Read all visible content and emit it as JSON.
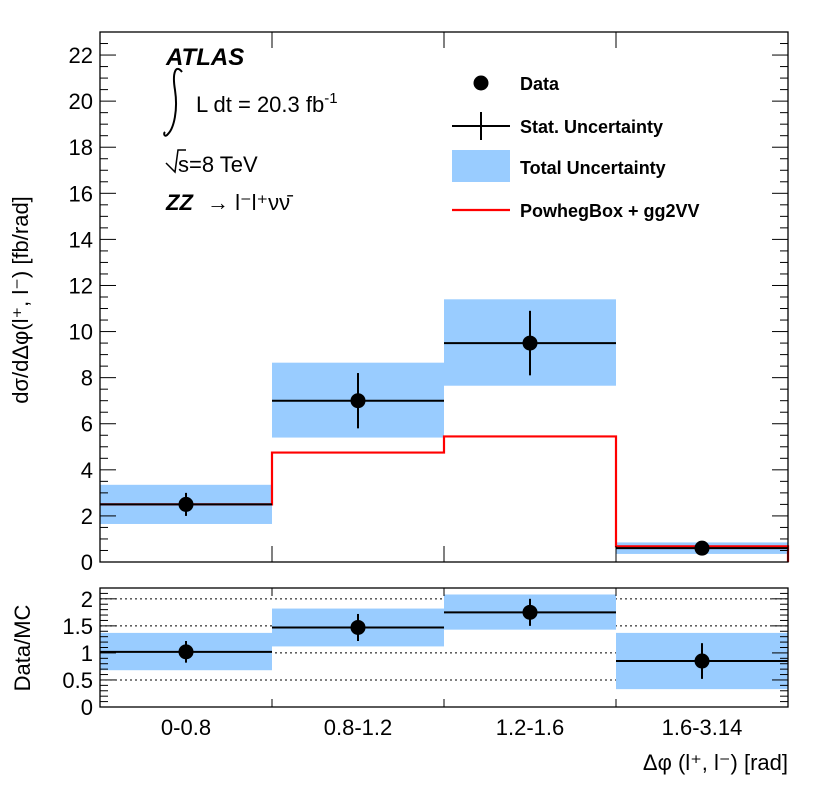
{
  "chart_data": [
    {
      "type": "bar",
      "panel": "main",
      "categories": [
        "0-0.8",
        "0.8-1.2",
        "1.2-1.6",
        "1.6-3.14"
      ],
      "xlabel": "Δφ (l⁺, l⁻) [rad]",
      "ylabel": "dσ/dΔφ(l⁺, l⁻) [fb/rad]",
      "ylim": [
        0,
        23
      ],
      "yticks": [
        "0",
        "2",
        "4",
        "6",
        "8",
        "10",
        "12",
        "14",
        "16",
        "18",
        "20",
        "22"
      ],
      "series": [
        {
          "name": "Data",
          "values": [
            2.5,
            7.0,
            9.5,
            0.6
          ],
          "stat_err": [
            0.5,
            1.2,
            1.4,
            0.15
          ]
        },
        {
          "name": "Total Uncertainty",
          "low": [
            1.65,
            5.4,
            7.65,
            0.35
          ],
          "high": [
            3.35,
            8.65,
            11.4,
            0.85
          ]
        },
        {
          "name": "PowhegBox + gg2VV",
          "values": [
            2.5,
            4.75,
            5.45,
            0.68
          ]
        }
      ],
      "legend": [
        {
          "label": "Data"
        },
        {
          "label": "Stat. Uncertainty"
        },
        {
          "label": "Total Uncertainty"
        },
        {
          "label": "PowhegBox + gg2VV"
        }
      ],
      "annotations": {
        "experiment": "ATLAS",
        "lumi_text": "L dt = 20.3 fb",
        "lumi_exp": "-1",
        "energy": "s=8 TeV",
        "process_zz": "ZZ",
        "process_rest": "→ l⁻l⁺νν̄"
      },
      "legend_position": "top-right"
    },
    {
      "type": "bar",
      "panel": "ratio",
      "categories": [
        "0-0.8",
        "0.8-1.2",
        "1.2-1.6",
        "1.6-3.14"
      ],
      "ylabel": "Data/MC",
      "ylim": [
        0,
        2.2
      ],
      "yticks": [
        "0",
        "0.5",
        "1",
        "1.5",
        "2"
      ],
      "gridlines": [
        0.5,
        1,
        1.5,
        2
      ],
      "series": [
        {
          "name": "Data",
          "values": [
            1.02,
            1.47,
            1.75,
            0.85
          ],
          "stat_err": [
            0.2,
            0.25,
            0.25,
            0.33
          ]
        },
        {
          "name": "Total Uncertainty",
          "low": [
            0.68,
            1.12,
            1.43,
            0.33
          ],
          "high": [
            1.37,
            1.82,
            2.08,
            1.37
          ]
        }
      ]
    }
  ],
  "colors": {
    "band": "#99ccff",
    "mc": "#ff0000",
    "data": "#000000"
  }
}
